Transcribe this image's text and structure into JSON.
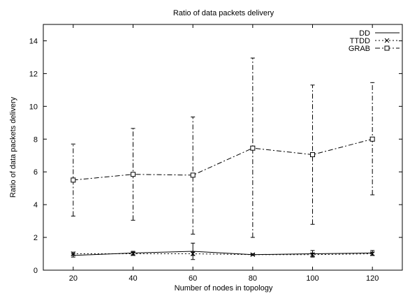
{
  "chart_data": {
    "type": "line",
    "title": "Ratio of data packets delivery",
    "xlabel": "Number of nodes in topology",
    "ylabel": "Ratio of data packets delivery",
    "xlim": [
      10,
      130
    ],
    "ylim": [
      0,
      15
    ],
    "xticks": [
      20,
      40,
      60,
      80,
      100,
      120
    ],
    "yticks": [
      0,
      2,
      4,
      6,
      8,
      10,
      12,
      14
    ],
    "grid": false,
    "legend_position": "top-right",
    "x": [
      20,
      40,
      60,
      80,
      100,
      120
    ],
    "series": [
      {
        "name": "DD",
        "style": "solid",
        "marker": "none",
        "values": [
          0.9,
          1.05,
          1.15,
          0.95,
          1.0,
          1.05
        ],
        "err_low": [
          0.8,
          0.95,
          0.65,
          0.9,
          0.8,
          0.9
        ],
        "err_high": [
          1.0,
          1.15,
          1.65,
          1.0,
          1.2,
          1.2
        ]
      },
      {
        "name": "TTDD",
        "style": "dotted",
        "marker": "x",
        "values": [
          1.0,
          1.0,
          1.0,
          0.95,
          0.95,
          1.0
        ],
        "err_low": [
          0.9,
          0.9,
          0.9,
          0.9,
          0.85,
          0.9
        ],
        "err_high": [
          1.1,
          1.1,
          1.1,
          1.0,
          1.05,
          1.1
        ]
      },
      {
        "name": "GRAB",
        "style": "dashdot",
        "marker": "square",
        "values": [
          5.5,
          5.85,
          5.8,
          7.45,
          7.05,
          8.0
        ],
        "err_low": [
          3.3,
          3.05,
          2.2,
          2.0,
          2.8,
          4.6
        ],
        "err_high": [
          7.7,
          8.65,
          9.35,
          12.95,
          11.3,
          11.45
        ]
      }
    ]
  }
}
